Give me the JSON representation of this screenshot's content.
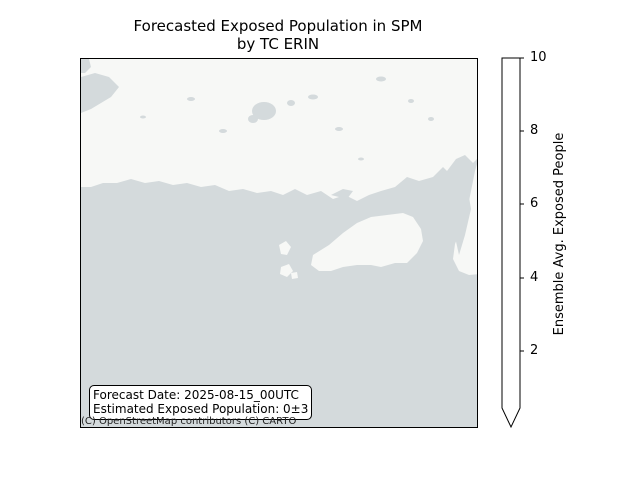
{
  "title": {
    "line1": "Forecasted Exposed Population in SPM",
    "line2": "by TC ERIN"
  },
  "info": {
    "forecast_date": "Forecast Date: 2025-08-15_00UTC",
    "estimated_population": "Estimated Exposed Population: 0±3"
  },
  "attribution": "(C) OpenStreetMap contributors (C) CARTO",
  "colorbar": {
    "label": "Ensemble Avg. Exposed People",
    "min": 0,
    "max": 10,
    "extend": "min",
    "ticks": [
      "2",
      "4",
      "6",
      "8",
      "10"
    ]
  },
  "colors": {
    "sea": "#d4dadc",
    "land": "#f7f8f6",
    "lake": "#d4dadc"
  }
}
